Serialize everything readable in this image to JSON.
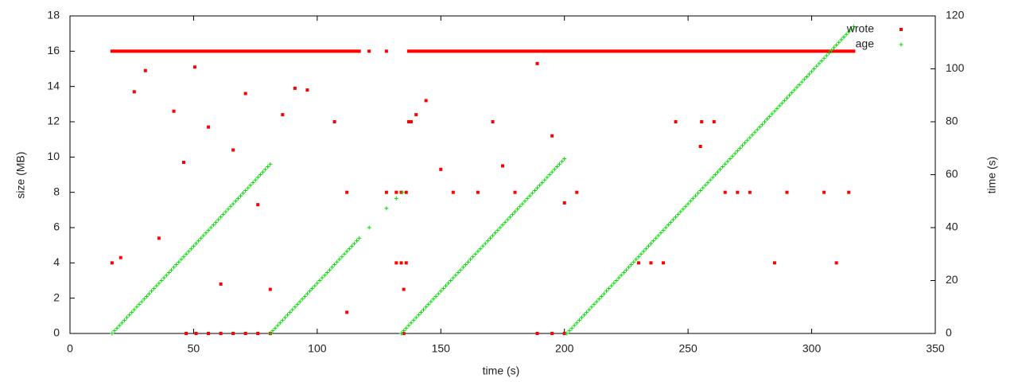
{
  "chart_data": {
    "type": "scatter",
    "xlabel": "time (s)",
    "ylabel": "size (MB)",
    "y2label": "time (s)",
    "xlim": [
      0,
      350
    ],
    "xticks": [
      0,
      50,
      100,
      150,
      200,
      250,
      300,
      350
    ],
    "ylim": [
      0,
      18
    ],
    "yticks": [
      0,
      2,
      4,
      6,
      8,
      10,
      12,
      14,
      16,
      18
    ],
    "y2lim": [
      0,
      120
    ],
    "y2ticks": [
      0,
      20,
      40,
      60,
      80,
      100,
      120
    ],
    "legend": "upper right",
    "grid": false,
    "series": [
      {
        "name": "wrote",
        "color": "#ff0000",
        "marker": "square",
        "x": [
          17,
          20.5,
          26,
          30.5,
          36,
          42,
          46,
          47,
          50.5,
          51,
          56,
          56,
          61,
          61,
          66,
          66,
          71,
          71,
          76,
          76,
          81,
          81,
          86,
          91,
          96,
          107,
          112,
          112,
          121,
          128,
          128,
          132,
          132,
          134,
          134,
          135,
          135,
          136,
          136,
          137,
          138,
          140,
          144,
          150,
          155,
          165,
          171,
          175,
          180,
          189,
          189,
          195,
          195,
          200,
          200,
          205,
          230,
          235,
          240,
          245,
          255,
          255.5,
          260.5,
          265,
          270,
          275,
          285,
          290,
          305,
          310,
          315,
          17,
          18,
          19,
          20,
          21,
          22,
          23,
          24,
          25,
          26,
          27,
          28,
          29,
          30,
          31,
          32,
          33,
          34,
          35,
          36,
          37,
          38,
          39,
          40,
          41,
          42,
          43,
          44,
          45,
          46,
          47,
          48,
          49,
          50,
          51,
          52,
          53,
          54,
          55,
          56,
          57,
          58,
          59,
          60,
          61,
          62,
          63,
          64,
          65,
          66,
          67,
          68,
          69,
          70,
          71,
          72,
          73,
          74,
          75,
          76,
          77,
          78,
          79,
          80,
          81,
          82,
          83,
          84,
          85,
          86,
          87,
          88,
          89,
          90,
          91,
          92,
          93,
          94,
          95,
          96,
          97,
          98,
          99,
          100,
          101,
          102,
          103,
          104,
          105,
          106,
          107,
          108,
          109,
          110,
          111,
          112,
          113,
          114,
          115,
          116,
          117,
          137,
          138,
          139,
          140,
          141,
          142,
          143,
          144,
          145,
          146,
          147,
          148,
          149,
          150,
          151,
          152,
          153,
          154,
          155,
          156,
          157,
          158,
          159,
          160,
          161,
          162,
          163,
          164,
          165,
          166,
          167,
          168,
          169,
          170,
          171,
          172,
          173,
          174,
          175,
          176,
          177,
          178,
          179,
          180,
          181,
          182,
          183,
          184,
          185,
          186,
          187,
          188,
          189,
          190,
          191,
          192,
          193,
          194,
          195,
          196,
          197,
          198,
          199,
          200,
          201,
          202,
          203,
          204,
          205,
          206,
          207,
          208,
          209,
          210,
          211,
          212,
          213,
          214,
          215,
          216,
          217,
          218,
          219,
          220,
          221,
          222,
          223,
          224,
          225,
          226,
          227,
          228,
          229,
          230,
          231,
          232,
          233,
          234,
          235,
          236,
          237,
          238,
          239,
          240,
          241,
          242,
          243,
          244,
          245,
          246,
          247,
          248,
          249,
          250,
          251,
          252,
          253,
          254,
          255,
          256,
          257,
          258,
          259,
          260,
          261,
          262,
          263,
          264,
          265,
          266,
          267,
          268,
          269,
          270,
          271,
          272,
          273,
          274,
          275,
          276,
          277,
          278,
          279,
          280,
          281,
          282,
          283,
          284,
          285,
          286,
          287,
          288,
          289,
          290,
          291,
          292,
          293,
          294,
          295,
          296,
          297,
          298,
          299,
          300,
          301,
          302,
          303,
          304,
          305,
          306,
          307,
          308,
          309,
          310,
          311,
          312,
          313,
          314,
          315,
          316,
          317
        ],
        "values": [
          4,
          4.3,
          13.7,
          14.9,
          5.4,
          12.6,
          9.7,
          0,
          15.1,
          0,
          11.7,
          0,
          2.8,
          0,
          10.4,
          0,
          13.6,
          0,
          7.3,
          0,
          2.5,
          0,
          12.4,
          13.9,
          13.8,
          12,
          8,
          1.2,
          16,
          16,
          8,
          8,
          4,
          4,
          8,
          0,
          2.5,
          4,
          8,
          12,
          12,
          12.4,
          13.2,
          9.3,
          8,
          8,
          12,
          9.5,
          8,
          15.3,
          0,
          11.2,
          0,
          7.4,
          0,
          8,
          4,
          4,
          4,
          12,
          10.6,
          12,
          12,
          8,
          8,
          8,
          4,
          8,
          8,
          4,
          8,
          16,
          16,
          16,
          16,
          16,
          16,
          16,
          16,
          16,
          16,
          16,
          16,
          16,
          16,
          16,
          16,
          16,
          16,
          16,
          16,
          16,
          16,
          16,
          16,
          16,
          16,
          16,
          16,
          16,
          16,
          16,
          16,
          16,
          16,
          16,
          16,
          16,
          16,
          16,
          16,
          16,
          16,
          16,
          16,
          16,
          16,
          16,
          16,
          16,
          16,
          16,
          16,
          16,
          16,
          16,
          16,
          16,
          16,
          16,
          16,
          16,
          16,
          16,
          16,
          16,
          16,
          16,
          16,
          16,
          16,
          16,
          16,
          16,
          16,
          16,
          16,
          16,
          16,
          16,
          16,
          16,
          16,
          16,
          16,
          16,
          16,
          16,
          16,
          16,
          16,
          16,
          16,
          16,
          16,
          16,
          16,
          16,
          16,
          16,
          16,
          16,
          16,
          16,
          16,
          16,
          16,
          16,
          16,
          16,
          16,
          16,
          16,
          16,
          16,
          16,
          16,
          16,
          16,
          16,
          16,
          16,
          16,
          16,
          16,
          16,
          16,
          16,
          16,
          16,
          16,
          16,
          16,
          16,
          16,
          16,
          16,
          16,
          16,
          16,
          16,
          16,
          16,
          16,
          16,
          16,
          16,
          16,
          16,
          16,
          16,
          16,
          16,
          16,
          16,
          16,
          16,
          16,
          16,
          16,
          16,
          16,
          16,
          16,
          16,
          16,
          16,
          16,
          16,
          16,
          16,
          16,
          16,
          16,
          16,
          16,
          16,
          16,
          16,
          16,
          16,
          16,
          16,
          16,
          16,
          16,
          16,
          16,
          16,
          16,
          16,
          16,
          16,
          16,
          16,
          16,
          16,
          16,
          16,
          16,
          16,
          16,
          16,
          16,
          16,
          16,
          16,
          16,
          16,
          16,
          16,
          16,
          16,
          16,
          16,
          16,
          16,
          16,
          16,
          16,
          16,
          16,
          16,
          16,
          16,
          16,
          16,
          16,
          16,
          16,
          16,
          16,
          16,
          16,
          16,
          16,
          16,
          16,
          16,
          16,
          16,
          16,
          16,
          16,
          16,
          16,
          16,
          16,
          16,
          16,
          16,
          16,
          16,
          16,
          16,
          16,
          16,
          16,
          16,
          16,
          16,
          16,
          16,
          16,
          16,
          16,
          16,
          16,
          16,
          16,
          16,
          16,
          16,
          16,
          16,
          16,
          16,
          16,
          16,
          16,
          16,
          16,
          16
        ]
      },
      {
        "name": "age",
        "color": "#00dd00",
        "marker": "plus",
        "axis": "y2",
        "x": [
          17,
          18,
          19,
          20,
          21,
          22,
          23,
          24,
          25,
          26,
          27,
          28,
          29,
          30,
          31,
          32,
          33,
          34,
          35,
          36,
          37,
          38,
          39,
          40,
          41,
          42,
          43,
          44,
          45,
          46,
          47,
          48,
          49,
          50,
          51,
          52,
          53,
          54,
          55,
          56,
          57,
          58,
          59,
          60,
          61,
          62,
          63,
          64,
          65,
          66,
          67,
          68,
          69,
          70,
          71,
          72,
          73,
          74,
          75,
          76,
          77,
          78,
          79,
          80,
          81,
          81,
          82,
          83,
          84,
          85,
          86,
          87,
          88,
          89,
          90,
          91,
          92,
          93,
          94,
          95,
          96,
          97,
          98,
          99,
          100,
          101,
          102,
          103,
          104,
          105,
          106,
          107,
          108,
          109,
          110,
          111,
          112,
          113,
          114,
          115,
          116,
          117,
          121,
          128,
          132,
          134.5,
          134,
          135,
          136,
          137,
          138,
          139,
          140,
          141,
          142,
          143,
          144,
          145,
          146,
          147,
          148,
          149,
          150,
          151,
          152,
          153,
          154,
          155,
          156,
          157,
          158,
          159,
          160,
          161,
          162,
          163,
          164,
          165,
          166,
          167,
          168,
          169,
          170,
          171,
          172,
          173,
          174,
          175,
          176,
          177,
          178,
          179,
          180,
          181,
          182,
          183,
          184,
          185,
          186,
          187,
          188,
          189,
          190,
          191,
          192,
          193,
          194,
          195,
          196,
          197,
          198,
          199,
          200,
          201,
          202,
          203,
          204,
          205,
          206,
          207,
          208,
          209,
          210,
          211,
          212,
          213,
          214,
          215,
          216,
          217,
          218,
          219,
          220,
          221,
          222,
          223,
          224,
          225,
          226,
          227,
          228,
          229,
          230,
          231,
          232,
          233,
          234,
          235,
          236,
          237,
          238,
          239,
          240,
          241,
          242,
          243,
          244,
          245,
          246,
          247,
          248,
          249,
          250,
          251,
          252,
          253,
          254,
          255,
          256,
          257,
          258,
          259,
          260,
          261,
          262,
          263,
          264,
          265,
          266,
          267,
          268,
          269,
          270,
          271,
          272,
          273,
          274,
          275,
          276,
          277,
          278,
          279,
          280,
          281,
          282,
          283,
          284,
          285,
          286,
          287,
          288,
          289,
          290,
          291,
          292,
          293,
          294,
          295,
          296,
          297,
          298,
          299,
          300,
          301,
          302,
          303,
          304,
          305,
          306,
          307,
          308,
          309,
          310,
          311,
          312,
          313,
          314,
          315,
          316,
          317
        ],
        "values": [
          0,
          1,
          2,
          3,
          4,
          5,
          6,
          7,
          8,
          9,
          10,
          11,
          12,
          13,
          14,
          15,
          16,
          17,
          18,
          19,
          20,
          21,
          22,
          23,
          24,
          25,
          26,
          27,
          28,
          29,
          30,
          31,
          32,
          33,
          34,
          35,
          36,
          37,
          38,
          39,
          40,
          41,
          42,
          43,
          44,
          45,
          46,
          47,
          48,
          49,
          50,
          51,
          52,
          53,
          54,
          55,
          56,
          57,
          58,
          59,
          60,
          61,
          62,
          63,
          64,
          0,
          1,
          2,
          3,
          4,
          5,
          6,
          7,
          8,
          9,
          10,
          11,
          12,
          13,
          14,
          15,
          16,
          17,
          18,
          19,
          20,
          21,
          22,
          23,
          24,
          25,
          26,
          27,
          28,
          29,
          30,
          31,
          32,
          33,
          34,
          35,
          36,
          40,
          47.3,
          51,
          53.3,
          0,
          1,
          2,
          3,
          4,
          5,
          6,
          7,
          8,
          9,
          10,
          11,
          12,
          13,
          14,
          15,
          16,
          17,
          18,
          19,
          20,
          21,
          22,
          23,
          24,
          25,
          26,
          27,
          28,
          29,
          30,
          31,
          32,
          33,
          34,
          35,
          36,
          37,
          38,
          39,
          40,
          41,
          42,
          43,
          44,
          45,
          46,
          47,
          48,
          49,
          50,
          51,
          52,
          53,
          54,
          55,
          56,
          57,
          58,
          59,
          60,
          61,
          62,
          63,
          64,
          65,
          66,
          0,
          1,
          2,
          3,
          4,
          5,
          6,
          7,
          8,
          9,
          10,
          11,
          12,
          13,
          14,
          15,
          16,
          17,
          18,
          19,
          20,
          21,
          22,
          23,
          24,
          25,
          26,
          27,
          28,
          29,
          30,
          31,
          32,
          33,
          34,
          35,
          36,
          37,
          38,
          39,
          40,
          41,
          42,
          43,
          44,
          45,
          46,
          47,
          48,
          49,
          50,
          51,
          52,
          53,
          54,
          55,
          56,
          57,
          58,
          59,
          60,
          61,
          62,
          63,
          64,
          65,
          66,
          67,
          68,
          69,
          70,
          71,
          72,
          73,
          74,
          75,
          76,
          77,
          78,
          79,
          80,
          81,
          82,
          83,
          84,
          85,
          86,
          87,
          88,
          89,
          90,
          91,
          92,
          93,
          94,
          95,
          96,
          97,
          98,
          99,
          100,
          101,
          102,
          103,
          104,
          105,
          106,
          107,
          108,
          109,
          110,
          111,
          112,
          113,
          114,
          115,
          116
        ]
      }
    ]
  }
}
